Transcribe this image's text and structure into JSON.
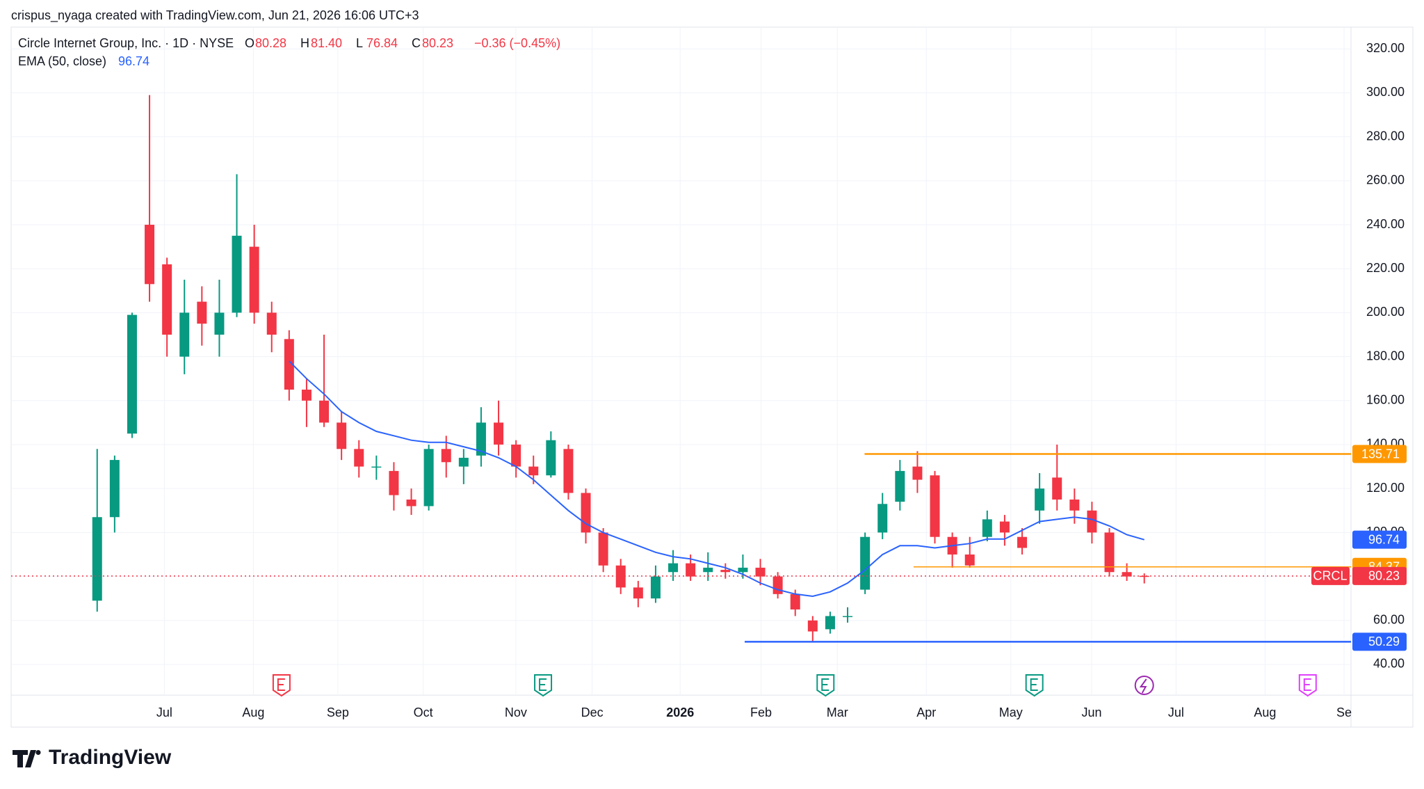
{
  "header": {
    "attribution": "crispus_nyaga created with TradingView.com, Jun 21, 2026 16:06 UTC+3"
  },
  "footer": {
    "logo": "TradingView"
  },
  "chart_data": {
    "type": "candlestick",
    "title": "Circle Internet Group, Inc. · 1D · NYSE",
    "ohlc_legend": [
      {
        "label": "O",
        "value": "80.28"
      },
      {
        "label": "H",
        "value": "81.40"
      },
      {
        "label": "L",
        "value": "76.84"
      },
      {
        "label": "C",
        "value": "80.23"
      }
    ],
    "change": "−0.36 (−0.45%)",
    "colors": {
      "up": "#089981",
      "down": "#f23645"
    },
    "open": [
      69,
      107,
      145,
      240,
      222,
      180,
      205,
      190,
      200,
      230,
      200,
      188,
      165,
      160,
      150,
      138,
      130,
      128,
      115,
      112,
      138,
      130,
      135,
      150,
      140,
      130,
      126,
      138,
      118,
      100,
      85,
      75,
      70,
      82,
      86,
      82,
      83,
      82,
      84,
      80,
      72,
      60,
      56,
      62,
      74,
      100,
      114,
      130,
      126,
      98,
      90,
      98,
      105,
      98,
      110,
      125,
      115,
      110,
      100,
      82,
      80.28
    ],
    "high": [
      138,
      135,
      200,
      299,
      225,
      215,
      212,
      215,
      263,
      240,
      205,
      192,
      170,
      190,
      155,
      142,
      135,
      132,
      120,
      140,
      144,
      138,
      157,
      160,
      142,
      135,
      146,
      140,
      120,
      102,
      88,
      78,
      85,
      92,
      90,
      91,
      86,
      90,
      88,
      82,
      74,
      62,
      64,
      66,
      100,
      118,
      133,
      137,
      128,
      100,
      98,
      110,
      108,
      102,
      127,
      140,
      120,
      114,
      102,
      86,
      81.4
    ],
    "low": [
      64,
      100,
      143,
      205,
      180,
      172,
      185,
      180,
      198,
      195,
      182,
      160,
      148,
      148,
      133,
      125,
      124,
      110,
      108,
      110,
      125,
      122,
      130,
      135,
      125,
      122,
      125,
      115,
      95,
      82,
      72,
      66,
      68,
      78,
      78,
      78,
      79,
      79,
      76,
      70,
      62,
      50,
      54,
      59,
      72,
      97,
      110,
      118,
      95,
      84,
      84,
      96,
      94,
      90,
      104,
      110,
      104,
      95,
      80,
      78,
      76.84
    ],
    "close": [
      107,
      133,
      199,
      213,
      190,
      200,
      195,
      200,
      235,
      200,
      190,
      165,
      160,
      150,
      138,
      130,
      130,
      117,
      112,
      138,
      132,
      134,
      150,
      140,
      130,
      126,
      142,
      118,
      100,
      85,
      75,
      70,
      80,
      86,
      80,
      84,
      82,
      84,
      80,
      72,
      65,
      55,
      62,
      62,
      98,
      113,
      128,
      124,
      98,
      90,
      85,
      106,
      100,
      93,
      120,
      115,
      110,
      100,
      82,
      80,
      80.23
    ],
    "series": [
      {
        "name": "EMA (50, close)",
        "color": "#2962ff",
        "values": [
          null,
          null,
          null,
          null,
          null,
          null,
          null,
          null,
          null,
          null,
          null,
          178,
          170,
          163,
          155,
          150,
          146,
          144,
          142,
          141,
          141,
          139,
          137,
          134,
          130,
          124,
          117,
          110,
          104,
          100,
          97,
          94,
          91,
          89,
          88,
          86,
          84,
          81,
          77,
          74,
          72,
          71,
          73,
          77,
          83,
          90,
          94,
          94,
          93,
          94,
          95,
          97,
          97,
          101,
          105,
          106,
          107,
          106,
          103,
          99,
          96.74
        ]
      }
    ],
    "xticks": [
      "Jul",
      "Aug",
      "Sep",
      "Oct",
      "Nov",
      "Dec",
      "2026",
      "Feb",
      "Mar",
      "Apr",
      "May",
      "Jun",
      "Jul",
      "Aug",
      "Se"
    ],
    "ylim": [
      26,
      329
    ],
    "yticks": [
      {
        "value": 40,
        "label": "40.00"
      },
      {
        "value": 60,
        "label": "60.00"
      },
      {
        "value": 80,
        "label": "80.00"
      },
      {
        "value": 100,
        "label": "100.00"
      },
      {
        "value": 120,
        "label": "120.00"
      },
      {
        "value": 140,
        "label": "140.00"
      },
      {
        "value": 160,
        "label": "160.00"
      },
      {
        "value": 180,
        "label": "180.00"
      },
      {
        "value": 200,
        "label": "200.00"
      },
      {
        "value": 220,
        "label": "220.00"
      },
      {
        "value": 240,
        "label": "240.00"
      },
      {
        "value": 260,
        "label": "260.00"
      },
      {
        "value": 280,
        "label": "280.00"
      },
      {
        "value": 300,
        "label": "300.00"
      },
      {
        "value": 320,
        "label": "320.00"
      }
    ],
    "grid": true,
    "levels": [
      {
        "value": 135.71,
        "color": "#ff9800"
      },
      {
        "value": 84.37,
        "color": "#ff9800"
      },
      {
        "value": 50.29,
        "color": "#2962ff"
      }
    ],
    "last_price": {
      "name": "CRCL",
      "value": 80.23,
      "color": "#f23645"
    }
  }
}
